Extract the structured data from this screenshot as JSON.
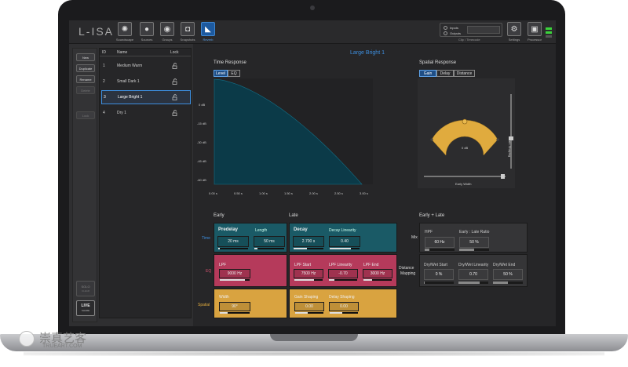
{
  "app": {
    "logo": "L-ISA",
    "toolbar": [
      {
        "label": "Soundscape",
        "icon": "soundscape-icon",
        "glyph": "✺"
      },
      {
        "label": "Sources",
        "icon": "sources-icon",
        "glyph": "●"
      },
      {
        "label": "Groups",
        "icon": "groups-icon",
        "glyph": "◉"
      },
      {
        "label": "Snapshots",
        "icon": "snapshots-icon",
        "glyph": "◘"
      },
      {
        "label": "Reverb",
        "icon": "reverb-icon",
        "glyph": "◣"
      }
    ],
    "io": {
      "inputs": "Inputs",
      "outputs": "Outputs",
      "clip": "Clip / Timecode"
    },
    "right_buttons": [
      {
        "label": "Settings",
        "glyph": "⚙"
      },
      {
        "label": "Processor",
        "glyph": "▣"
      }
    ]
  },
  "side_buttons": {
    "new": "New",
    "duplicate": "Duplicate",
    "rename": "Rename",
    "delete": "Delete",
    "lock": "Lock",
    "solo": "SOLO",
    "solo_sub": "CLEAR",
    "live": "LIVE",
    "live_sub": "SHARE"
  },
  "presets": {
    "headers": {
      "id": "ID",
      "name": "Name",
      "lock": "Lock"
    },
    "rows": [
      {
        "id": "1",
        "name": "Medium Warm"
      },
      {
        "id": "2",
        "name": "Small Dark 1"
      },
      {
        "id": "3",
        "name": "Large Bright  1"
      },
      {
        "id": "4",
        "name": "Dry 1"
      }
    ]
  },
  "current_preset": "Large Bright  1",
  "time_response": {
    "title": "Time Response",
    "tabs": [
      "Level",
      "EQ"
    ],
    "y_ticks": [
      "0 dB",
      "-15 dB",
      "-30 dB",
      "-45 dB",
      "-60 dB"
    ],
    "x_ticks": [
      "0.00 s",
      "0.50 s",
      "1.00 s",
      "1.50 s",
      "2.00 s",
      "2.50 s",
      "3.00 s"
    ]
  },
  "spatial_response": {
    "title": "Spatial Response",
    "tabs": [
      "Gain",
      "Delay",
      "Distance"
    ],
    "center_label": "0 dB",
    "gain_shaping": "Gain Shaping",
    "early_width": "Early Width"
  },
  "sections": {
    "early": "Early",
    "late": "Late",
    "early_late": "Early + Late"
  },
  "row_labels": {
    "time": "Time",
    "eq": "EQ",
    "spatial": "Spatial",
    "mix": "Mix",
    "distance": "Distance",
    "mapping": "Mapping"
  },
  "early": {
    "predelay": {
      "label": "Predelay",
      "value": "20 ms"
    },
    "length": {
      "label": "Length",
      "value": "50 ms"
    },
    "lpf": {
      "label": "LPF",
      "value": "9000 Hz"
    },
    "width": {
      "label": "Width",
      "value": "90°"
    }
  },
  "late": {
    "decay": {
      "label": "Decay",
      "value": "2.700 s"
    },
    "decay_linearity": {
      "label": "Decay Linearity",
      "value": "0.40"
    },
    "lpf_start": {
      "label": "LPF Start",
      "value": "7500 Hz"
    },
    "lpf_linearity": {
      "label": "LPF Linearity",
      "value": "-0.70"
    },
    "lpf_end": {
      "label": "LPF End",
      "value": "3000 Hz"
    },
    "gain_shaping": {
      "label": "Gain Shaping",
      "value": "0.00"
    },
    "delay_shaping": {
      "label": "Delay Shaping",
      "value": "0.00"
    }
  },
  "early_late": {
    "hpf": {
      "label": "HPF",
      "value": "60 Hz"
    },
    "ratio": {
      "label": "Early : Late Ratio",
      "value": "50 %"
    },
    "dw_start": {
      "label": "Dry/Wet Start",
      "value": "0 %"
    },
    "dw_linearity": {
      "label": "Dry/Wet Linearity",
      "value": "0.70"
    },
    "dw_end": {
      "label": "Dry/Wet End",
      "value": "50 %"
    }
  },
  "colors": {
    "time_block": "#1a5a66",
    "eq_block": "#b53a5b",
    "spatial_block": "#d9a340",
    "accent": "#3d8fe0",
    "curve_fill": "#0b3a48"
  },
  "watermark": {
    "cn": "崇真艺客",
    "en": "TRUEART.COM"
  }
}
